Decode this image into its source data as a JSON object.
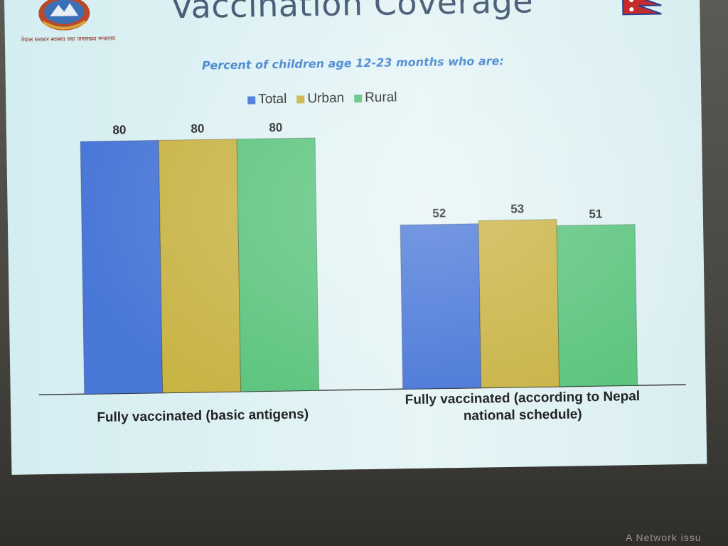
{
  "slide": {
    "title": "Vaccination Coverage",
    "subtitle": "Percent of children age 12-23 months who are:",
    "emblem_text": "नेपाल सरकार स्वास्थ्य तथा जनसंख्या मन्त्रालय",
    "corner_text": "A Network issu"
  },
  "legend": [
    {
      "label": "Total",
      "color": "#4a78d8"
    },
    {
      "label": "Urban",
      "color": "#c9b446"
    },
    {
      "label": "Rural",
      "color": "#5cc47e"
    }
  ],
  "chart_data": {
    "type": "bar",
    "title": "",
    "xlabel": "",
    "ylabel": "",
    "ylim": [
      0,
      100
    ],
    "grid": false,
    "legend_position": "top",
    "categories": [
      "Fully vaccinated (basic antigens)",
      "Fully vaccinated (according to Nepal national schedule)"
    ],
    "category_lines": [
      [
        "Fully vaccinated (basic antigens)"
      ],
      [
        "Fully vaccinated (according to Nepal",
        "national schedule)"
      ]
    ],
    "series": [
      {
        "name": "Total",
        "values": [
          80,
          52
        ],
        "color": "#4a78d8"
      },
      {
        "name": "Urban",
        "values": [
          80,
          53
        ],
        "color": "#c9b446"
      },
      {
        "name": "Rural",
        "values": [
          80,
          51
        ],
        "color": "#5cc47e"
      }
    ]
  }
}
